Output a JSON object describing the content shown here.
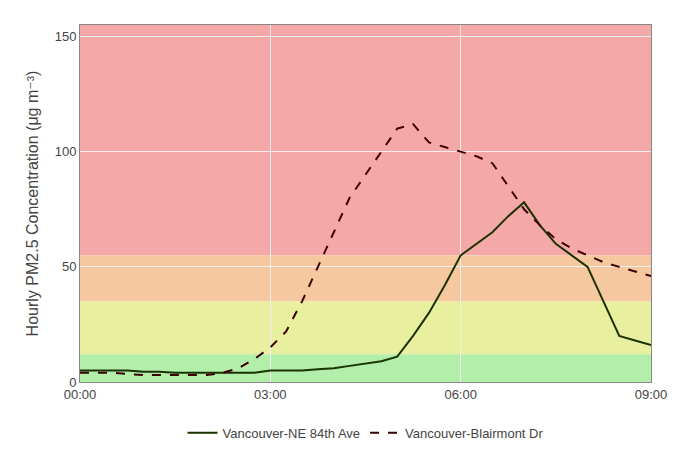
{
  "chart_data": {
    "type": "line",
    "ylabel": "Hourly PM2.5 Concentration (μg m⁻³)",
    "x": [
      0,
      0.25,
      0.5,
      0.75,
      1.0,
      1.25,
      1.5,
      1.75,
      2.0,
      2.25,
      2.5,
      2.75,
      3.0,
      3.25,
      3.5,
      3.75,
      4.0,
      4.25,
      4.5,
      4.75,
      5.0,
      5.25,
      5.5,
      5.75,
      6.0,
      6.25,
      6.5,
      6.75,
      7.0,
      7.25,
      7.5,
      7.75,
      8.0,
      8.25,
      8.5,
      8.75,
      9.0
    ],
    "series": [
      {
        "name": "Vancouver-NE 84th Ave",
        "color": "#1a3300",
        "line_style": "solid",
        "values": [
          5,
          5,
          5,
          5,
          4.5,
          4.5,
          4,
          4,
          4,
          4,
          4,
          4,
          5,
          5,
          5,
          5.5,
          6,
          7,
          8,
          9,
          11,
          20,
          30,
          42,
          55,
          60,
          65,
          72,
          78,
          68,
          60,
          55,
          50,
          35,
          20,
          18,
          16
        ]
      },
      {
        "name": "Vancouver-Blairmont Dr",
        "color": "#3d0000",
        "line_style": "dashed",
        "values": [
          4,
          4,
          4,
          3.5,
          3,
          3,
          3,
          3,
          3,
          4,
          6,
          10,
          15,
          22,
          35,
          50,
          65,
          80,
          90,
          100,
          110,
          112,
          104,
          102,
          100,
          98,
          95,
          85,
          75,
          68,
          62,
          58,
          55,
          52,
          50,
          48,
          46
        ]
      }
    ],
    "bands": [
      {
        "lo": 55,
        "hi": 155,
        "color": "#f5a8a8"
      },
      {
        "lo": 35,
        "hi": 55,
        "color": "#f5c8a0"
      },
      {
        "lo": 12,
        "hi": 35,
        "color": "#e8f0a0"
      },
      {
        "lo": 0,
        "hi": 12,
        "color": "#b3eeaa"
      }
    ],
    "xlim": [
      0,
      9
    ],
    "xticks": [
      {
        "value": 0,
        "label": "00:00"
      },
      {
        "value": 3,
        "label": "03:00"
      },
      {
        "value": 6,
        "label": "06:00"
      },
      {
        "value": 9,
        "label": "09:00"
      }
    ],
    "ylim": [
      0,
      155
    ],
    "yticks": [
      0,
      50,
      100,
      150
    ],
    "grid": true,
    "legend": "bottom"
  }
}
